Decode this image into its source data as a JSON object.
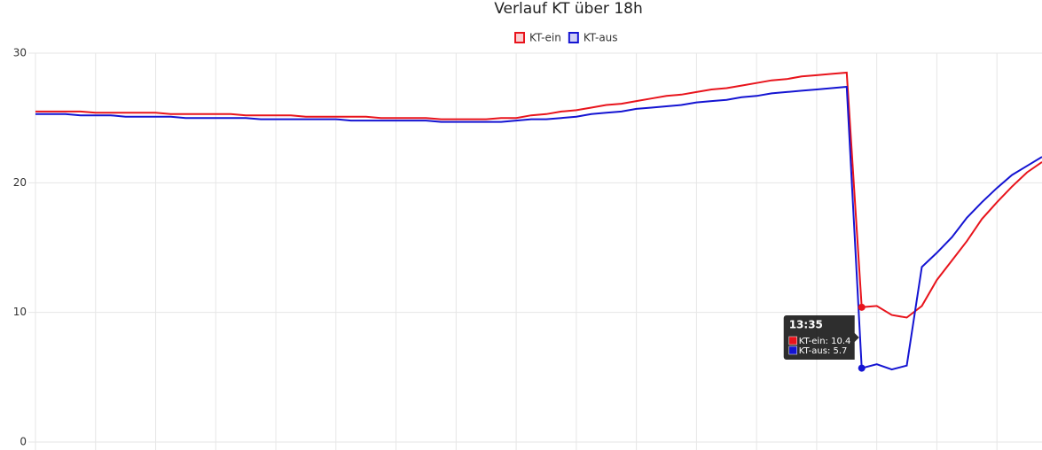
{
  "chart_data": {
    "type": "line",
    "title": "Verlauf KT über 18h",
    "categories": [
      null,
      null,
      null,
      null,
      null,
      null,
      null,
      null,
      null,
      null,
      null,
      null,
      null,
      null,
      null,
      null,
      null,
      null,
      null,
      null,
      null,
      null,
      null,
      null,
      null,
      null,
      null,
      null,
      null,
      null,
      null,
      null,
      null,
      null,
      null,
      null,
      null,
      null,
      null,
      null,
      null,
      null,
      null,
      null,
      null,
      null,
      null,
      null,
      null,
      null,
      null,
      null,
      null,
      null,
      null,
      null,
      null,
      null,
      null,
      null,
      null,
      null,
      null,
      null,
      null,
      null,
      null,
      null
    ],
    "series": [
      {
        "name": "KT-ein",
        "color": "#e8141c",
        "values": [
          25.5,
          25.5,
          25.5,
          25.5,
          25.4,
          25.4,
          25.4,
          25.4,
          25.4,
          25.3,
          25.3,
          25.3,
          25.3,
          25.3,
          25.2,
          25.2,
          25.2,
          25.2,
          25.1,
          25.1,
          25.1,
          25.1,
          25.1,
          25.0,
          25.0,
          25.0,
          25.0,
          24.9,
          24.9,
          24.9,
          24.9,
          25.0,
          25.0,
          25.2,
          25.3,
          25.5,
          25.6,
          25.8,
          26.0,
          26.1,
          26.3,
          26.5,
          26.7,
          26.8,
          27.0,
          27.2,
          27.3,
          27.5,
          27.7,
          27.9,
          28.0,
          28.2,
          28.3,
          28.4,
          28.5,
          10.4,
          10.5,
          9.8,
          9.6,
          10.5,
          12.5,
          14.0,
          15.5,
          17.2,
          18.5,
          19.7,
          20.8,
          21.6
        ]
      },
      {
        "name": "KT-aus",
        "color": "#1414d2",
        "values": [
          25.3,
          25.3,
          25.3,
          25.2,
          25.2,
          25.2,
          25.1,
          25.1,
          25.1,
          25.1,
          25.0,
          25.0,
          25.0,
          25.0,
          25.0,
          24.9,
          24.9,
          24.9,
          24.9,
          24.9,
          24.9,
          24.8,
          24.8,
          24.8,
          24.8,
          24.8,
          24.8,
          24.7,
          24.7,
          24.7,
          24.7,
          24.7,
          24.8,
          24.9,
          24.9,
          25.0,
          25.1,
          25.3,
          25.4,
          25.5,
          25.7,
          25.8,
          25.9,
          26.0,
          26.2,
          26.3,
          26.4,
          26.6,
          26.7,
          26.9,
          27.0,
          27.1,
          27.2,
          27.3,
          27.4,
          5.7,
          6.0,
          5.6,
          5.9,
          13.5,
          14.6,
          15.8,
          17.3,
          18.5,
          19.6,
          20.6,
          21.3,
          22.0
        ]
      }
    ],
    "ylim": [
      0,
      30
    ],
    "yticks": [
      0,
      10,
      20,
      30
    ],
    "grid": true,
    "legend": "top",
    "tooltip": {
      "index": 55,
      "title": "13:35",
      "lines": [
        "KT-ein: 10.4",
        "KT-aus: 5.7"
      ]
    }
  }
}
